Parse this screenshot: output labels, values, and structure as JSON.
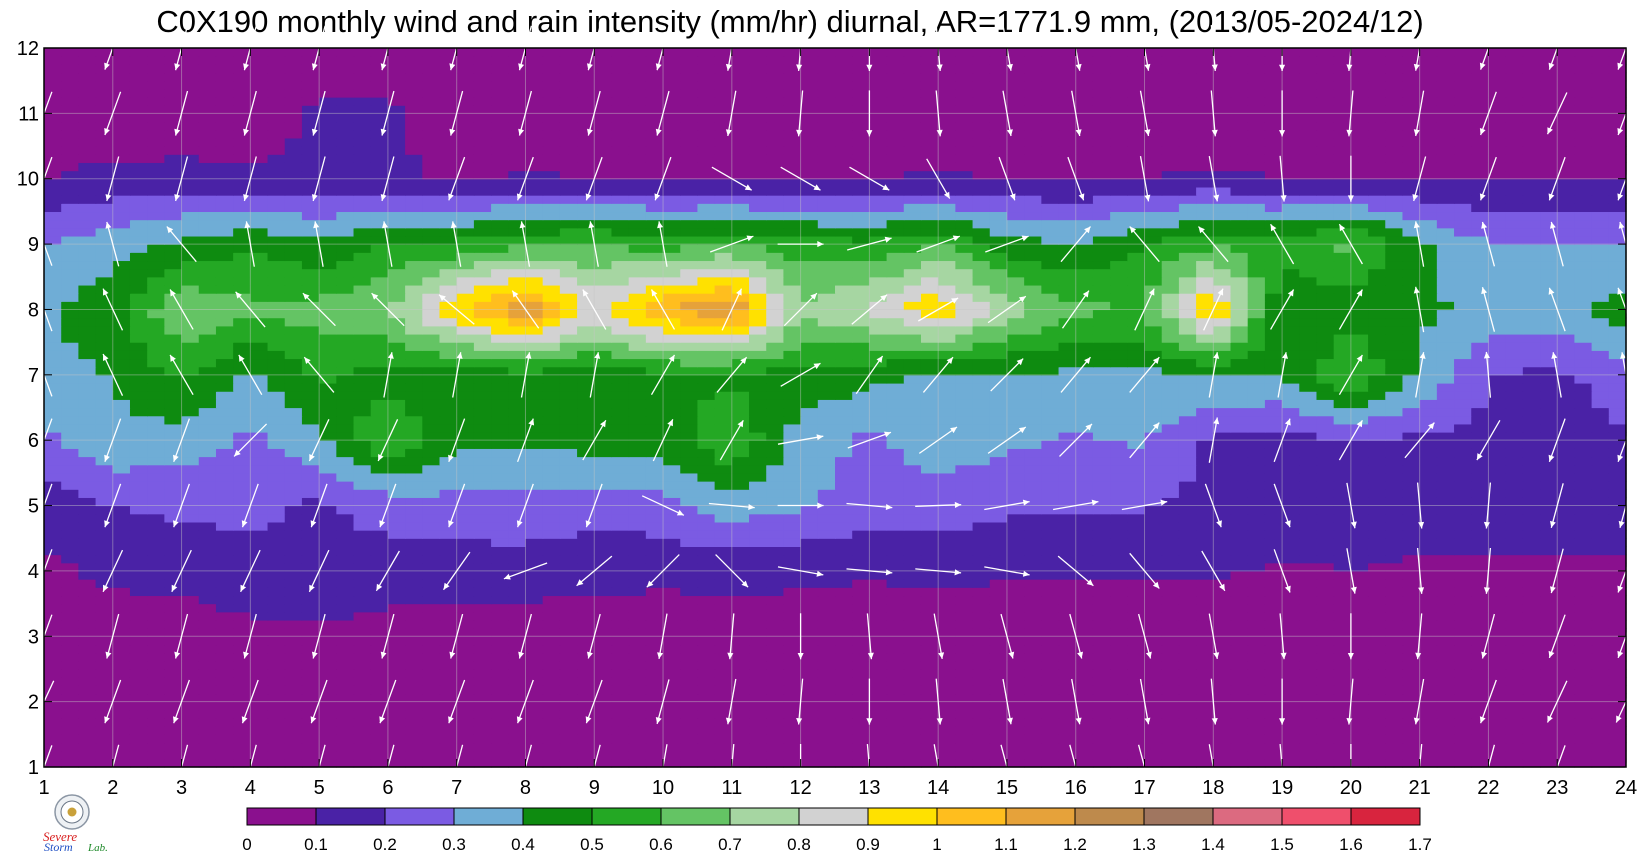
{
  "title": "C0X190 monthly wind and rain intensity (mm/hr) diurnal, AR=1771.9 mm, (2013/05-2024/12)",
  "logo": {
    "line1": "Severe",
    "line2": "Storm",
    "line3": "Lab."
  },
  "chart_data": {
    "type": "heatmap",
    "title": "C0X190 monthly wind and rain intensity (mm/hr) diurnal, AR=1771.9 mm, (2013/05-2024/12)",
    "xlabel": "",
    "ylabel": "",
    "x_ticks": [
      "1",
      "2",
      "3",
      "4",
      "5",
      "6",
      "7",
      "8",
      "9",
      "10",
      "11",
      "12",
      "13",
      "14",
      "15",
      "16",
      "17",
      "18",
      "19",
      "20",
      "21",
      "22",
      "23",
      "24"
    ],
    "y_ticks": [
      "1",
      "2",
      "3",
      "4",
      "5",
      "6",
      "7",
      "8",
      "9",
      "10",
      "11",
      "12"
    ],
    "xlim": [
      1,
      24
    ],
    "ylim": [
      1,
      12
    ],
    "grid": true,
    "vector_overlay": "wind arrows (white)",
    "colorbar": {
      "levels": [
        "0",
        "0.1",
        "0.2",
        "0.3",
        "0.4",
        "0.5",
        "0.6",
        "0.7",
        "0.8",
        "0.9",
        "1",
        "1.1",
        "1.2",
        "1.3",
        "1.4",
        "1.5",
        "1.6",
        "1.7"
      ],
      "colors": [
        "#8a108e",
        "#4a22a6",
        "#7b5be3",
        "#6fadd6",
        "#0e8b10",
        "#24a824",
        "#64c464",
        "#a6d6a2",
        "#d2d2d2",
        "#ffe100",
        "#ffbe1e",
        "#e6a23a",
        "#be8a4c",
        "#a07660",
        "#dc6a80",
        "#ef4f6c",
        "#d8243e"
      ]
    },
    "rain_intensity": [
      [
        0.02,
        0.02,
        0.02,
        0.02,
        0.02,
        0.02,
        0.02,
        0.02,
        0.02,
        0.02,
        0.02,
        0.02,
        0.02,
        0.02,
        0.02,
        0.02,
        0.02,
        0.02,
        0.02,
        0.02,
        0.02,
        0.02,
        0.02,
        0.02
      ],
      [
        0.02,
        0.02,
        0.02,
        0.02,
        0.02,
        0.02,
        0.02,
        0.02,
        0.02,
        0.02,
        0.02,
        0.02,
        0.02,
        0.02,
        0.02,
        0.02,
        0.02,
        0.02,
        0.02,
        0.02,
        0.02,
        0.02,
        0.02,
        0.02
      ],
      [
        0.04,
        0.05,
        0.05,
        0.08,
        0.07,
        0.06,
        0.05,
        0.04,
        0.05,
        0.05,
        0.05,
        0.05,
        0.05,
        0.05,
        0.05,
        0.05,
        0.05,
        0.05,
        0.05,
        0.05,
        0.05,
        0.04,
        0.04,
        0.04
      ],
      [
        0.08,
        0.12,
        0.13,
        0.15,
        0.19,
        0.15,
        0.14,
        0.15,
        0.13,
        0.12,
        0.13,
        0.12,
        0.11,
        0.12,
        0.11,
        0.11,
        0.11,
        0.11,
        0.09,
        0.1,
        0.09,
        0.08,
        0.08,
        0.08
      ],
      [
        0.15,
        0.2,
        0.22,
        0.23,
        0.18,
        0.24,
        0.27,
        0.27,
        0.24,
        0.27,
        0.35,
        0.31,
        0.26,
        0.25,
        0.22,
        0.22,
        0.21,
        0.16,
        0.16,
        0.12,
        0.14,
        0.16,
        0.16,
        0.16
      ],
      [
        0.28,
        0.38,
        0.35,
        0.28,
        0.38,
        0.6,
        0.42,
        0.41,
        0.44,
        0.44,
        0.6,
        0.35,
        0.28,
        0.36,
        0.32,
        0.29,
        0.31,
        0.18,
        0.17,
        0.19,
        0.18,
        0.18,
        0.12,
        0.2
      ],
      [
        0.38,
        0.4,
        0.52,
        0.38,
        0.52,
        0.45,
        0.45,
        0.46,
        0.44,
        0.48,
        0.47,
        0.47,
        0.43,
        0.37,
        0.39,
        0.38,
        0.38,
        0.4,
        0.4,
        0.6,
        0.38,
        0.2,
        0.18,
        0.25
      ],
      [
        0.38,
        0.46,
        0.7,
        0.62,
        0.64,
        0.71,
        0.99,
        1.2,
        0.88,
        1.1,
        1.2,
        0.72,
        0.82,
        1.0,
        0.75,
        0.62,
        0.6,
        1.05,
        0.4,
        0.45,
        0.42,
        0.38,
        0.37,
        0.45
      ],
      [
        0.3,
        0.36,
        0.42,
        0.48,
        0.42,
        0.5,
        0.52,
        0.58,
        0.6,
        0.55,
        0.6,
        0.55,
        0.52,
        0.6,
        0.45,
        0.4,
        0.5,
        0.58,
        0.55,
        0.62,
        0.42,
        0.3,
        0.3,
        0.3
      ],
      [
        0.1,
        0.13,
        0.14,
        0.12,
        0.12,
        0.12,
        0.09,
        0.11,
        0.1,
        0.09,
        0.08,
        0.08,
        0.1,
        0.11,
        0.1,
        0.1,
        0.1,
        0.12,
        0.1,
        0.1,
        0.1,
        0.1,
        0.1,
        0.1
      ],
      [
        0.02,
        0.02,
        0.02,
        0.04,
        0.12,
        0.12,
        0.02,
        0.02,
        0.02,
        0.02,
        0.02,
        0.02,
        0.02,
        0.02,
        0.02,
        0.02,
        0.02,
        0.02,
        0.02,
        0.02,
        0.02,
        0.02,
        0.02,
        0.02
      ],
      [
        0.02,
        0.02,
        0.02,
        0.02,
        0.02,
        0.02,
        0.02,
        0.02,
        0.02,
        0.02,
        0.02,
        0.02,
        0.02,
        0.02,
        0.02,
        0.02,
        0.02,
        0.02,
        0.02,
        0.02,
        0.02,
        0.02,
        0.02,
        0.02
      ]
    ],
    "wind_direction_to_deg": [
      [
        200,
        195,
        195,
        195,
        195,
        195,
        195,
        195,
        195,
        190,
        185,
        180,
        175,
        170,
        165,
        165,
        165,
        170,
        175,
        180,
        185,
        195,
        200,
        200
      ],
      [
        205,
        200,
        200,
        200,
        200,
        200,
        200,
        200,
        200,
        195,
        190,
        185,
        180,
        175,
        170,
        170,
        170,
        175,
        180,
        185,
        190,
        200,
        205,
        205
      ],
      [
        200,
        195,
        195,
        195,
        195,
        195,
        195,
        195,
        195,
        190,
        185,
        180,
        175,
        170,
        165,
        165,
        165,
        170,
        175,
        180,
        185,
        195,
        200,
        200
      ],
      [
        200,
        205,
        205,
        205,
        205,
        210,
        215,
        250,
        230,
        225,
        135,
        100,
        95,
        95,
        100,
        130,
        140,
        150,
        160,
        170,
        175,
        185,
        195,
        200
      ],
      [
        200,
        200,
        200,
        200,
        200,
        200,
        200,
        200,
        200,
        115,
        95,
        90,
        95,
        88,
        80,
        80,
        80,
        160,
        160,
        170,
        175,
        185,
        195,
        195
      ],
      [
        200,
        200,
        200,
        225,
        205,
        205,
        200,
        20,
        30,
        25,
        30,
        80,
        70,
        55,
        55,
        45,
        40,
        10,
        20,
        30,
        40,
        210,
        200,
        200
      ],
      [
        340,
        335,
        330,
        330,
        320,
        10,
        10,
        10,
        10,
        30,
        40,
        60,
        35,
        40,
        45,
        40,
        40,
        10,
        10,
        30,
        10,
        355,
        350,
        350
      ],
      [
        340,
        335,
        330,
        320,
        315,
        315,
        310,
        325,
        330,
        330,
        25,
        45,
        50,
        60,
        55,
        35,
        25,
        25,
        30,
        30,
        350,
        345,
        340,
        340
      ],
      [
        340,
        345,
        320,
        350,
        350,
        350,
        350,
        350,
        350,
        350,
        70,
        90,
        75,
        70,
        70,
        40,
        320,
        320,
        330,
        330,
        350,
        345,
        345,
        345
      ],
      [
        200,
        195,
        195,
        195,
        195,
        195,
        200,
        200,
        200,
        200,
        120,
        120,
        120,
        150,
        160,
        160,
        170,
        170,
        175,
        180,
        195,
        200,
        200,
        200
      ],
      [
        200,
        200,
        195,
        195,
        195,
        195,
        195,
        195,
        195,
        195,
        190,
        185,
        180,
        175,
        170,
        170,
        170,
        175,
        180,
        185,
        190,
        200,
        205,
        200
      ],
      [
        200,
        200,
        195,
        195,
        195,
        195,
        195,
        195,
        195,
        195,
        190,
        185,
        180,
        175,
        170,
        170,
        170,
        175,
        180,
        185,
        190,
        200,
        200,
        200
      ]
    ]
  }
}
